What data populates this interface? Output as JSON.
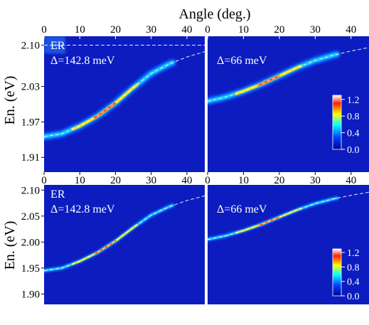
{
  "figure": {
    "top_axis_title": "Angle (deg.)",
    "y_axis_title": "En. (eV)"
  },
  "chart_data": [
    {
      "type": "heatmap",
      "row": "top",
      "column": "left",
      "labels": [
        "ER",
        "Δ=142.8 meV"
      ],
      "x_ticks": [
        "0",
        "10",
        "20",
        "30",
        "40"
      ],
      "xlim": [
        0,
        45
      ],
      "y_ticks": [
        "1.91",
        "1.97",
        "2.03",
        "2.10"
      ],
      "y_tick_values": [
        1.91,
        1.97,
        2.03,
        2.1
      ],
      "ylim": [
        1.885,
        2.115
      ],
      "lower_branch": {
        "x": [
          0,
          5,
          10,
          15,
          20,
          25,
          30,
          35,
          40,
          45
        ],
        "y": [
          1.945,
          1.95,
          1.963,
          1.98,
          2.002,
          2.028,
          2.052,
          2.068,
          2.08,
          2.089
        ]
      },
      "peak_x": 17
    },
    {
      "type": "heatmap",
      "row": "top",
      "column": "right",
      "labels": [
        "Δ=66 meV"
      ],
      "x_ticks": [
        "0",
        "10",
        "20",
        "30",
        "40"
      ],
      "xlim": [
        0,
        45
      ],
      "ylim": [
        1.885,
        2.115
      ],
      "lower_branch": {
        "x": [
          0,
          5,
          10,
          15,
          20,
          25,
          30,
          35,
          40,
          45
        ],
        "y": [
          2.005,
          2.012,
          2.022,
          2.034,
          2.048,
          2.062,
          2.074,
          2.083,
          2.09,
          2.096
        ]
      },
      "peak_x": 17,
      "colorbar": {
        "ticks": [
          "1.2",
          "0.8",
          "0.4",
          "0.0"
        ],
        "range": [
          0,
          1.3
        ]
      }
    },
    {
      "type": "heatmap",
      "row": "bottom",
      "column": "left",
      "labels": [
        "ER",
        "Δ=142.8 meV"
      ],
      "x_ticks": [
        "0",
        "10",
        "20",
        "30",
        "40"
      ],
      "xlim": [
        0,
        45
      ],
      "y_ticks": [
        "1.90",
        "1.95",
        "2.00",
        "2.05",
        "2.10"
      ],
      "y_tick_values": [
        1.9,
        1.95,
        2.0,
        2.05,
        2.1
      ],
      "ylim": [
        1.88,
        2.11
      ],
      "lower_branch": {
        "x": [
          0,
          5,
          10,
          15,
          20,
          25,
          30,
          35,
          40,
          45
        ],
        "y": [
          1.945,
          1.95,
          1.963,
          1.98,
          2.002,
          2.028,
          2.052,
          2.068,
          2.08,
          2.089
        ]
      },
      "peak_x": 17
    },
    {
      "type": "heatmap",
      "row": "bottom",
      "column": "right",
      "labels": [
        "Δ=66 meV"
      ],
      "x_ticks": [
        "0",
        "10",
        "20",
        "30",
        "40"
      ],
      "xlim": [
        0,
        45
      ],
      "ylim": [
        1.88,
        2.11
      ],
      "lower_branch": {
        "x": [
          0,
          5,
          10,
          15,
          20,
          25,
          30,
          35,
          40,
          45
        ],
        "y": [
          2.005,
          2.012,
          2.022,
          2.034,
          2.048,
          2.062,
          2.074,
          2.083,
          2.09,
          2.096
        ]
      },
      "peak_x": 17,
      "colorbar": {
        "ticks": [
          "1.2",
          "0.8",
          "0.4",
          "0.0"
        ],
        "range": [
          0,
          1.3
        ]
      }
    }
  ],
  "colors": {
    "background": "#0c1cbf",
    "colormap": [
      "#00008f",
      "#0040ff",
      "#00ffff",
      "#ffff00",
      "#ff2000",
      "#ffffff"
    ]
  }
}
